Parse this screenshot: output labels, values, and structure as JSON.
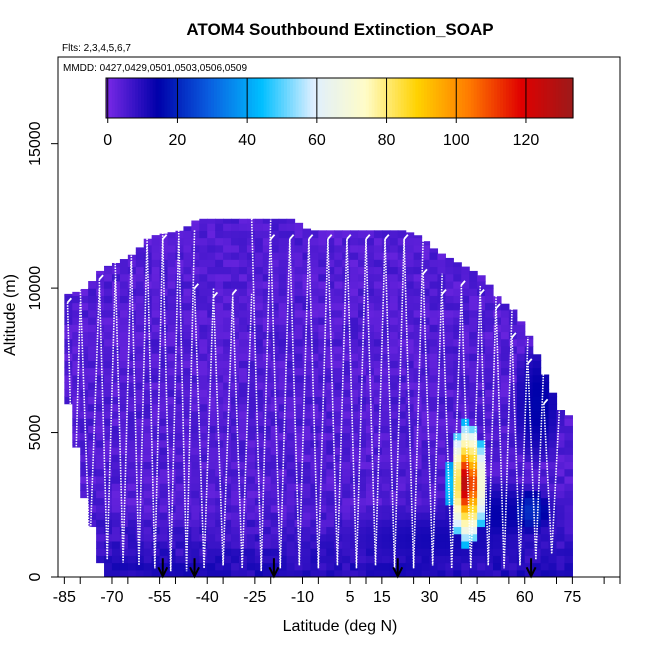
{
  "chart_data": {
    "type": "heatmap",
    "title": "ATOM4 Southbound Extinction_SOAP",
    "flights_note": "Flts: 2,3,4,5,6,7",
    "dates_note": "MMDD: 0427,0429,0501,0503,0506,0509",
    "xlabel": "Latitude (deg N)",
    "ylabel": "Altitude (m)",
    "xlim": [
      -87,
      90
    ],
    "ylim": [
      0,
      18000
    ],
    "x_ticks": [
      -85,
      -70,
      -55,
      -40,
      -25,
      -10,
      5,
      15,
      30,
      45,
      60,
      75
    ],
    "x_minor_ticks": [
      -80,
      -65,
      -50,
      -35,
      -20,
      -5,
      10,
      25,
      40,
      55,
      70,
      85,
      90
    ],
    "y_ticks": [
      0,
      5000,
      10000,
      15000
    ],
    "colorbar": {
      "ticks": [
        0,
        20,
        40,
        60,
        80,
        100,
        120
      ],
      "min": -0.5,
      "max": 133.5,
      "colors": [
        "#7b2ae8",
        "#0000aa",
        "#0a5fe0",
        "#00bfff",
        "#dfefff",
        "#fffcc8",
        "#ffd200",
        "#ff7a00",
        "#e00000",
        "#9c1a1a"
      ]
    },
    "ceiling": [
      [
        -83,
        9800
      ],
      [
        -78,
        10000
      ],
      [
        -73,
        10700
      ],
      [
        -68,
        10900
      ],
      [
        -63,
        11200
      ],
      [
        -58,
        11800
      ],
      [
        -53,
        11900
      ],
      [
        -48,
        12000
      ],
      [
        -43,
        12400
      ],
      [
        -38,
        12400
      ],
      [
        -33,
        12400
      ],
      [
        -28,
        12400
      ],
      [
        -23,
        12400
      ],
      [
        -18,
        12400
      ],
      [
        -13,
        12400
      ],
      [
        -8,
        12000
      ],
      [
        -3,
        12000
      ],
      [
        2,
        12000
      ],
      [
        7,
        12000
      ],
      [
        12,
        12000
      ],
      [
        17,
        12000
      ],
      [
        22,
        12000
      ],
      [
        27,
        11800
      ],
      [
        32,
        11300
      ],
      [
        37,
        11000
      ],
      [
        42,
        10700
      ],
      [
        47,
        10400
      ],
      [
        52,
        9600
      ],
      [
        57,
        9200
      ],
      [
        62,
        8200
      ],
      [
        67,
        6800
      ],
      [
        72,
        5600
      ]
    ],
    "floor": [
      [
        -83,
        6000
      ],
      [
        -79,
        3000
      ],
      [
        -75,
        1200
      ],
      [
        -72,
        0
      ],
      [
        72,
        0
      ]
    ],
    "hotspots": [
      {
        "lat": 42,
        "alt": 3250,
        "value": 130,
        "w": 3.5,
        "h": 1400
      },
      {
        "lat": 42,
        "alt": 3250,
        "value": 100,
        "w": 6,
        "h": 2200
      },
      {
        "lat": 64,
        "alt": 6000,
        "value": 15,
        "w": 8,
        "h": 2200
      },
      {
        "lat": 52,
        "alt": 2200,
        "value": 14,
        "w": 22,
        "h": 1200
      },
      {
        "lat": 35,
        "alt": 1300,
        "value": 12,
        "w": 40,
        "h": 1200
      },
      {
        "lat": 62,
        "alt": 2300,
        "value": 22,
        "w": 6,
        "h": 800
      },
      {
        "lat": -50,
        "alt": 300,
        "value": 12,
        "w": 25,
        "h": 500
      },
      {
        "lat": 20,
        "alt": 300,
        "value": 12,
        "w": 20,
        "h": 500
      },
      {
        "lat": -20,
        "alt": 300,
        "value": 12,
        "w": 10,
        "h": 500
      }
    ],
    "profiles": [
      {
        "lat_start": -84,
        "lat_end": -80,
        "top": 9500,
        "bottom": 1500
      },
      {
        "lat_start": -80,
        "lat_end": -74,
        "top": 10000,
        "bottom": 800
      },
      {
        "lat_start": -74,
        "lat_end": -69,
        "top": 10300,
        "bottom": 600
      },
      {
        "lat_start": -69,
        "lat_end": -64,
        "top": 10900,
        "bottom": 500
      },
      {
        "lat_start": -64,
        "lat_end": -59,
        "top": 11500,
        "bottom": 400
      },
      {
        "lat_start": -59,
        "lat_end": -54,
        "top": 11900,
        "bottom": 300
      },
      {
        "lat_start": -54,
        "lat_end": -49,
        "top": 11700,
        "bottom": 200
      },
      {
        "lat_start": -49,
        "lat_end": -44,
        "top": 12000,
        "bottom": 200
      },
      {
        "lat_start": -44,
        "lat_end": -38,
        "top": 10000,
        "bottom": 300
      },
      {
        "lat_start": -38,
        "lat_end": -32,
        "top": 9700,
        "bottom": 400
      },
      {
        "lat_start": -32,
        "lat_end": -26,
        "top": 9800,
        "bottom": 300
      },
      {
        "lat_start": -26,
        "lat_end": -20,
        "top": 12400,
        "bottom": 200
      },
      {
        "lat_start": -20,
        "lat_end": -14,
        "top": 11700,
        "bottom": 300
      },
      {
        "lat_start": -14,
        "lat_end": -8,
        "top": 11700,
        "bottom": 400
      },
      {
        "lat_start": -8,
        "lat_end": -2,
        "top": 11700,
        "bottom": 300
      },
      {
        "lat_start": -2,
        "lat_end": 4,
        "top": 11700,
        "bottom": 400
      },
      {
        "lat_start": 4,
        "lat_end": 10,
        "top": 11700,
        "bottom": 300
      },
      {
        "lat_start": 10,
        "lat_end": 16,
        "top": 11700,
        "bottom": 400
      },
      {
        "lat_start": 16,
        "lat_end": 22,
        "top": 11700,
        "bottom": 300
      },
      {
        "lat_start": 22,
        "lat_end": 28,
        "top": 11700,
        "bottom": 300
      },
      {
        "lat_start": 28,
        "lat_end": 34,
        "top": 10500,
        "bottom": 400
      },
      {
        "lat_start": 34,
        "lat_end": 40,
        "top": 9800,
        "bottom": 300
      },
      {
        "lat_start": 40,
        "lat_end": 46,
        "top": 10100,
        "bottom": 300
      },
      {
        "lat_start": 46,
        "lat_end": 51,
        "top": 9800,
        "bottom": 400
      },
      {
        "lat_start": 51,
        "lat_end": 56,
        "top": 9300,
        "bottom": 300
      },
      {
        "lat_start": 56,
        "lat_end": 61,
        "top": 8300,
        "bottom": 400
      },
      {
        "lat_start": 61,
        "lat_end": 66,
        "top": 7400,
        "bottom": 600
      },
      {
        "lat_start": 66,
        "lat_end": 71,
        "top": 6000,
        "bottom": 800
      }
    ],
    "arrows_lat": [
      -54,
      -44,
      -19,
      20,
      62
    ]
  }
}
